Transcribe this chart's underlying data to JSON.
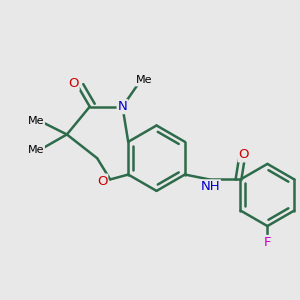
{
  "background_color": "#e8e8e8",
  "bond_color": "#2d6b4a",
  "bond_width": 1.8,
  "atom_colors": {
    "O": "#cc0000",
    "N": "#0000cc",
    "F": "#cc00cc"
  },
  "figsize": [
    3.0,
    3.0
  ],
  "dpi": 100,
  "xlim": [
    -1.8,
    1.8
  ],
  "ylim": [
    -1.3,
    1.3
  ]
}
